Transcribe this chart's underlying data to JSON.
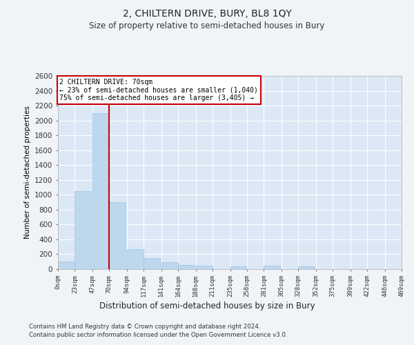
{
  "title": "2, CHILTERN DRIVE, BURY, BL8 1QY",
  "subtitle": "Size of property relative to semi-detached houses in Bury",
  "xlabel": "Distribution of semi-detached houses by size in Bury",
  "ylabel": "Number of semi-detached properties",
  "footnote1": "Contains HM Land Registry data © Crown copyright and database right 2024.",
  "footnote2": "Contains public sector information licensed under the Open Government Licence v3.0.",
  "annotation_title": "2 CHILTERN DRIVE: 70sqm",
  "annotation_line1": "← 23% of semi-detached houses are smaller (1,040)",
  "annotation_line2": "75% of semi-detached houses are larger (3,405) →",
  "property_size": 70,
  "bins": [
    0,
    23,
    47,
    70,
    94,
    117,
    141,
    164,
    188,
    211,
    235,
    258,
    281,
    305,
    328,
    352,
    375,
    399,
    422,
    446,
    469
  ],
  "bin_labels": [
    "0sqm",
    "23sqm",
    "47sqm",
    "70sqm",
    "94sqm",
    "117sqm",
    "141sqm",
    "164sqm",
    "188sqm",
    "211sqm",
    "235sqm",
    "258sqm",
    "281sqm",
    "305sqm",
    "328sqm",
    "352sqm",
    "375sqm",
    "399sqm",
    "422sqm",
    "446sqm",
    "469sqm"
  ],
  "counts": [
    100,
    1050,
    2100,
    900,
    270,
    150,
    90,
    60,
    50,
    0,
    40,
    0,
    50,
    0,
    40,
    0,
    0,
    0,
    0,
    0
  ],
  "bar_color": "#bdd7ee",
  "bar_edge_color": "#9dc3e6",
  "vline_color": "#cc0000",
  "annotation_box_color": "#cc0000",
  "bg_color": "#f0f4f8",
  "plot_bg_color": "#dce8f5",
  "grid_color": "#ffffff",
  "ylim": [
    0,
    2600
  ],
  "yticks": [
    0,
    200,
    400,
    600,
    800,
    1000,
    1200,
    1400,
    1600,
    1800,
    2000,
    2200,
    2400,
    2600
  ]
}
